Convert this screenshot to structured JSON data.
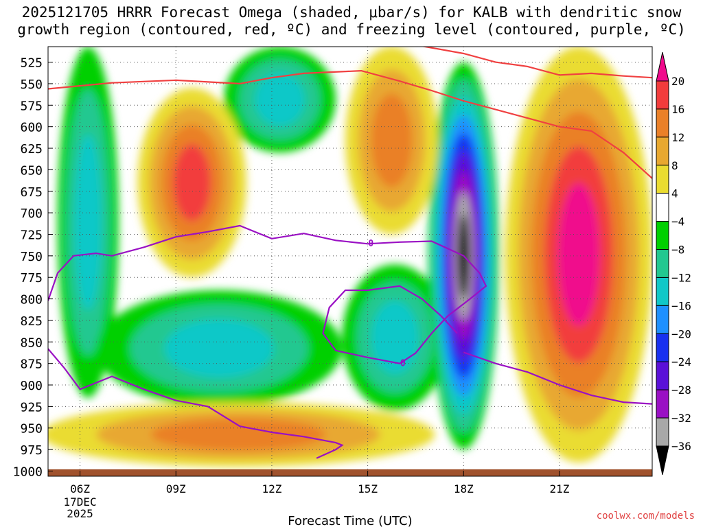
{
  "chart_data": {
    "type": "heatmap",
    "title_lines": [
      "2025121705 HRRR Forecast Omega (shaded, μbar/s) for KALB with dendritic snow",
      "growth region (contoured, red, ºC) and freezing level (contoured, purple, ºC)"
    ],
    "xlabel": "Forecast Time (UTC)",
    "ylabel": "",
    "x_tick_labels": [
      "06Z",
      "09Z",
      "12Z",
      "15Z",
      "18Z",
      "21Z"
    ],
    "x_tick_hours": [
      6,
      9,
      12,
      15,
      18,
      21
    ],
    "x_range_hours": [
      5,
      23.9
    ],
    "date_labels": [
      "17DEC",
      "2025"
    ],
    "y_tick_labels": [
      "525",
      "550",
      "575",
      "600",
      "625",
      "650",
      "675",
      "700",
      "725",
      "750",
      "775",
      "800",
      "825",
      "850",
      "875",
      "900",
      "925",
      "950",
      "975",
      "1000"
    ],
    "y_range_mb": [
      507,
      1006
    ],
    "grid": true,
    "colorbar": {
      "orientation": "vertical",
      "placement": "right",
      "colors": [
        "#000000",
        "#a8a8a8",
        "#9a10c4",
        "#5a10d8",
        "#1830f0",
        "#1e90ff",
        "#10c8c8",
        "#22c890",
        "#00d000",
        "#ffffff",
        "#eadc30",
        "#e8a830",
        "#ea8028",
        "#f23c3c",
        "#f00a8c"
      ],
      "tick_labels": [
        "20",
        "16",
        "12",
        "8",
        "4",
        "−4",
        "−8",
        "−12",
        "−16",
        "−20",
        "−24",
        "−28",
        "−32",
        "−36"
      ],
      "tick_values": [
        20,
        16,
        12,
        8,
        4,
        -4,
        -8,
        -12,
        -16,
        -20,
        -24,
        -28,
        -32,
        -36
      ]
    },
    "omega_features": [
      {
        "name": "upward-motion-column-06z",
        "x_range": [
          5.3,
          7.2
        ],
        "p_range": [
          507,
          915
        ],
        "peak": -14
      },
      {
        "name": "upward-motion-band-low-levels",
        "x_range": [
          6.5,
          14.2
        ],
        "p_range": [
          790,
          925
        ],
        "peak": -16
      },
      {
        "name": "upward-motion-upper-1130z",
        "x_range": [
          10.5,
          14
        ],
        "p_range": [
          507,
          630
        ],
        "peak": -14
      },
      {
        "name": "upward-motion-1530z",
        "x_range": [
          14.2,
          17.5
        ],
        "p_range": [
          760,
          930
        ],
        "peak": -14
      },
      {
        "name": "strong-upward-motion-18z",
        "x_range": [
          16.9,
          19.1
        ],
        "p_range": [
          525,
          975
        ],
        "peak": -37
      },
      {
        "name": "sinking-motion-09z",
        "x_range": [
          7.8,
          11.2
        ],
        "p_range": [
          555,
          775
        ],
        "peak": 17
      },
      {
        "name": "sinking-motion-1530z",
        "x_range": [
          14.3,
          17.2
        ],
        "p_range": [
          507,
          725
        ],
        "peak": 15
      },
      {
        "name": "sinking-motion-low-levels",
        "x_range": [
          4.8,
          17.1
        ],
        "p_range": [
          920,
          995
        ],
        "peak": 14
      },
      {
        "name": "sinking-motion-21z",
        "x_range": [
          19.3,
          23.9
        ],
        "p_range": [
          507,
          990
        ],
        "peak": 24
      }
    ],
    "dgz_contour_red": {
      "label": "dendritic snow growth region",
      "lines": [
        {
          "points": [
            [
              5.0,
              556
            ],
            [
              7,
              549
            ],
            [
              9,
              546
            ],
            [
              11,
              550
            ],
            [
              12,
              543
            ],
            [
              13,
              538
            ],
            [
              14.8,
              535
            ],
            [
              16,
              547
            ],
            [
              17,
              558
            ],
            [
              18,
              570
            ],
            [
              19,
              580
            ],
            [
              20,
              590
            ],
            [
              21,
              600
            ],
            [
              22,
              605
            ],
            [
              23,
              630
            ],
            [
              23.9,
              660
            ]
          ]
        },
        {
          "points": [
            [
              16.5,
              505
            ],
            [
              18,
              515
            ],
            [
              19,
              525
            ],
            [
              20,
              530
            ],
            [
              21,
              540
            ],
            [
              22,
              538
            ],
            [
              23,
              541
            ],
            [
              23.9,
              543
            ]
          ]
        }
      ]
    },
    "freezing_level_contour_purple": {
      "label_value": "0",
      "lines": [
        {
          "points": [
            [
              5.0,
              802
            ],
            [
              5.3,
              770
            ],
            [
              5.8,
              750
            ],
            [
              6.5,
              747
            ],
            [
              7,
              750
            ],
            [
              8,
              740
            ],
            [
              9,
              728
            ],
            [
              10,
              722
            ],
            [
              11,
              715
            ],
            [
              12,
              730
            ],
            [
              13,
              724
            ],
            [
              14,
              732
            ],
            [
              15,
              736
            ],
            [
              16,
              734
            ],
            [
              17,
              733
            ],
            [
              18,
              750
            ],
            [
              18.5,
              770
            ],
            [
              18.7,
              785
            ],
            [
              18.2,
              800
            ],
            [
              17.5,
              820
            ],
            [
              17,
              840
            ],
            [
              16.5,
              863
            ],
            [
              16,
              875
            ],
            [
              15,
              868
            ],
            [
              14,
              860
            ],
            [
              13.6,
              840
            ],
            [
              13.8,
              810
            ],
            [
              14.3,
              790
            ],
            [
              15,
              790
            ],
            [
              16,
              785
            ],
            [
              16.7,
              800
            ],
            [
              17.3,
              820
            ],
            [
              17.8,
              840
            ]
          ]
        },
        {
          "points": [
            [
              5.0,
              858
            ],
            [
              5.5,
              880
            ],
            [
              6,
              905
            ],
            [
              7,
              890
            ],
            [
              8,
              905
            ],
            [
              9,
              918
            ],
            [
              10,
              925
            ],
            [
              11,
              948
            ],
            [
              12,
              955
            ],
            [
              13,
              960
            ],
            [
              14,
              967
            ],
            [
              14.2,
              970
            ],
            [
              14,
              975
            ],
            [
              13.4,
              985
            ]
          ]
        },
        {
          "points": [
            [
              18,
              862
            ],
            [
              19,
              875
            ],
            [
              20,
              885
            ],
            [
              21,
              900
            ],
            [
              22,
              912
            ],
            [
              23,
              920
            ],
            [
              23.9,
              922
            ]
          ]
        }
      ],
      "label_points": [
        [
          15.1,
          735
        ],
        [
          16.1,
          874
        ]
      ]
    }
  },
  "credit": "coolwx.com/models"
}
